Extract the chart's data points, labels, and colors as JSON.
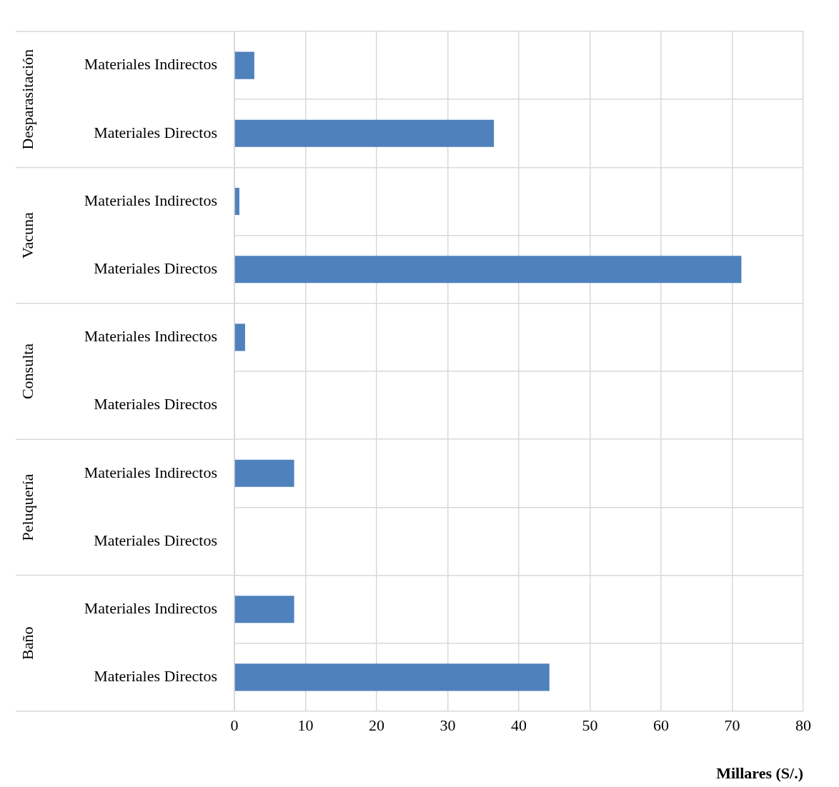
{
  "chart_data": {
    "type": "bar",
    "orientation": "horizontal",
    "xlabel": "Millares (S/.)",
    "categories": [
      "Materiales Indirectos",
      "Materiales Directos",
      "Materiales Indirectos",
      "Materiales Directos",
      "Materiales Indirectos",
      "Materiales Directos",
      "Materiales Indirectos",
      "Materiales Directos",
      "Materiales Indirectos",
      "Materiales Directos"
    ],
    "values": [
      2.8,
      36.5,
      0.7,
      71.3,
      1.5,
      0,
      8.4,
      0,
      8.4,
      44.3
    ],
    "color": "#4f81bd",
    "xlim": [
      0,
      80
    ],
    "xticks": [
      0,
      10,
      20,
      30,
      40,
      50,
      60,
      70,
      80
    ],
    "grid": true,
    "annotations": [
      "Desparasitación",
      "Vacuna",
      "Consulta",
      "Peluquería",
      "Baño"
    ]
  }
}
